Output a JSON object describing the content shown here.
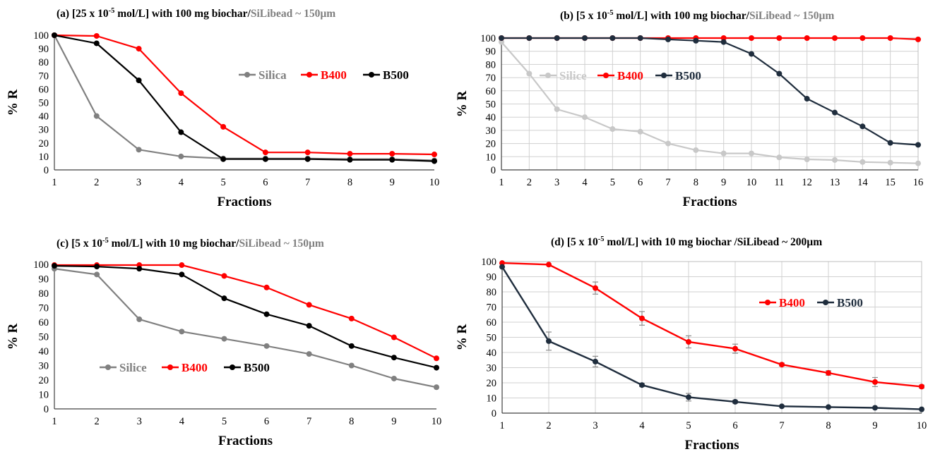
{
  "chart_data": [
    {
      "id": "a",
      "type": "line",
      "title_prefix": "(a) [25 x 10",
      "title_exp": "-5",
      "title_mid": " mol/L] with 100 mg biochar/",
      "title_gray": "SiLibead ~ 150µm",
      "xlabel": "Fractions",
      "ylabel": "% R",
      "x": [
        1,
        2,
        3,
        4,
        5,
        6,
        7,
        8,
        9,
        10
      ],
      "ylim": [
        0,
        100
      ],
      "ystep": 10,
      "grid": false,
      "legend": "right",
      "series": [
        {
          "name": "Silica",
          "color": "#808080",
          "values": [
            100,
            40,
            15,
            10,
            8.5,
            8.5,
            8.5,
            8,
            8,
            7
          ]
        },
        {
          "name": "B400",
          "color": "#ff0000",
          "values": [
            100,
            99.5,
            90,
            57,
            32,
            13,
            13,
            12,
            12,
            11.5
          ]
        },
        {
          "name": "B500",
          "color": "#000000",
          "values": [
            100,
            94,
            66.5,
            28,
            8,
            8,
            8,
            7.5,
            7.5,
            6.5
          ]
        }
      ]
    },
    {
      "id": "b",
      "type": "line",
      "title_prefix": "(b) [5 x 10",
      "title_exp": "-5",
      "title_mid": " mol/L] with 100 mg  biochar/",
      "title_gray": "SiLibead ~ 150µm",
      "xlabel": "Fractions",
      "ylabel": "% R",
      "x": [
        1,
        2,
        3,
        4,
        5,
        6,
        7,
        8,
        9,
        10,
        11,
        12,
        13,
        14,
        15,
        16
      ],
      "ylim": [
        0,
        100
      ],
      "ystep": 10,
      "grid": true,
      "legend": "top-left",
      "series": [
        {
          "name": "Silice",
          "color": "#c8c8c8",
          "values": [
            97,
            73,
            46,
            40,
            31,
            29,
            20,
            15,
            12.5,
            12.5,
            9.5,
            8,
            7.5,
            6,
            5.5,
            5
          ]
        },
        {
          "name": "B400",
          "color": "#ff0000",
          "values": [
            100,
            100,
            100,
            100,
            100,
            100,
            100,
            100,
            100,
            100,
            100,
            100,
            100,
            100,
            100,
            99
          ]
        },
        {
          "name": "B500",
          "color": "#1f2d3d",
          "values": [
            100,
            100,
            100,
            100,
            100,
            100,
            99,
            98,
            97,
            88,
            73,
            54,
            43.5,
            33,
            20.5,
            19
          ]
        }
      ]
    },
    {
      "id": "c",
      "type": "line",
      "title_prefix": "(c) [5 x 10",
      "title_exp": "-5",
      "title_mid": "  mol/L] with 10 mg biochar/",
      "title_gray": "SiLibead ~ 150µm",
      "xlabel": "Fractions",
      "ylabel": "% R",
      "x": [
        1,
        2,
        3,
        4,
        5,
        6,
        7,
        8,
        9,
        10
      ],
      "ylim": [
        0,
        100
      ],
      "ystep": 10,
      "grid": false,
      "legend": "bottom-left",
      "series": [
        {
          "name": "Silice",
          "color": "#808080",
          "values": [
            97,
            93,
            62,
            53.5,
            48.5,
            43.5,
            38,
            30,
            21,
            15
          ]
        },
        {
          "name": "B400",
          "color": "#ff0000",
          "values": [
            99.5,
            99.5,
            99.5,
            99.5,
            92,
            84,
            72,
            62.5,
            49.5,
            35
          ]
        },
        {
          "name": "B500",
          "color": "#000000",
          "values": [
            99,
            98.5,
            97,
            93,
            76.5,
            65.5,
            57.5,
            43.5,
            35.5,
            28.5
          ]
        }
      ]
    },
    {
      "id": "d",
      "type": "line",
      "title_prefix": "(d)  [5 x 10",
      "title_exp": "-5",
      "title_mid": " mol/L] with 10 mg biochar /SiLibead ~ 200µm",
      "title_gray": "",
      "xlabel": "Fractions",
      "ylabel": "% R",
      "x": [
        1,
        2,
        3,
        4,
        5,
        6,
        7,
        8,
        9,
        10
      ],
      "ylim": [
        0,
        100
      ],
      "ystep": 10,
      "grid": true,
      "legend": "right",
      "series": [
        {
          "name": "B400",
          "color": "#ff0000",
          "values": [
            99,
            98,
            82.5,
            62.5,
            47,
            42.5,
            32,
            26.5,
            20.5,
            17.5
          ],
          "errors": [
            0.5,
            0.5,
            4,
            4.5,
            4,
            3,
            1,
            1.5,
            3,
            1
          ]
        },
        {
          "name": "B500",
          "color": "#1f2d3d",
          "values": [
            96.5,
            47.5,
            34,
            18.5,
            10.5,
            7.5,
            4.5,
            4,
            3.5,
            2.5
          ],
          "errors": [
            0.5,
            6,
            3.5,
            1,
            2.5,
            1,
            0.5,
            0.5,
            0.5,
            0.5
          ]
        }
      ]
    }
  ]
}
